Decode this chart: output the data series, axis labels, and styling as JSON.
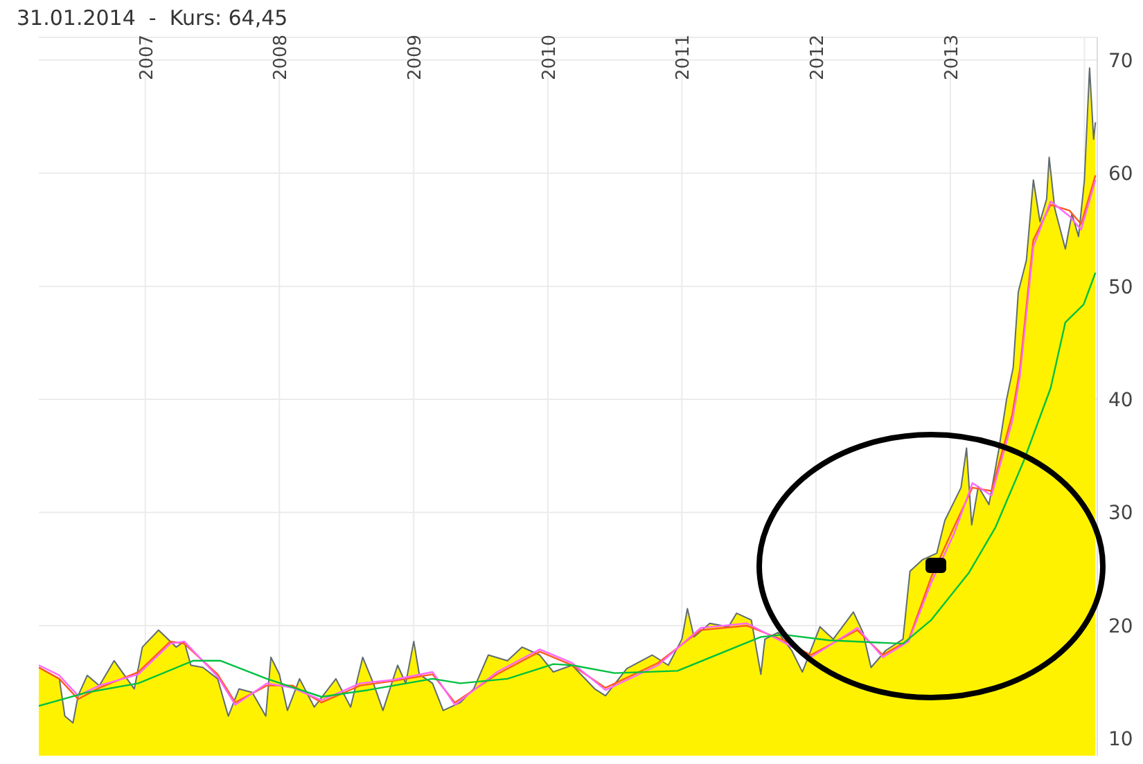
{
  "chart_data": {
    "type": "area",
    "title": "31.01.2014  -  Kurs: 64,45",
    "xlim": [
      "2006-03-17",
      "2014-02-05"
    ],
    "xticks": [
      {
        "value": "2007-01-01",
        "label": "2007"
      },
      {
        "value": "2008-01-01",
        "label": "2008"
      },
      {
        "value": "2009-01-01",
        "label": "2009"
      },
      {
        "value": "2010-01-01",
        "label": "2010"
      },
      {
        "value": "2011-01-01",
        "label": "2011"
      },
      {
        "value": "2012-01-01",
        "label": "2012"
      },
      {
        "value": "2013-01-01",
        "label": "2013"
      },
      {
        "value": "2014-01-01",
        "label": null
      }
    ],
    "ylim": [
      8.5,
      72
    ],
    "yticks": [
      10,
      20,
      30,
      40,
      50,
      60,
      70
    ],
    "grid": true,
    "series": [
      {
        "color": "#fff200",
        "x": [
          "2006-03-17",
          "2006-05-12",
          "2006-05-27",
          "2006-06-18",
          "2006-07-02",
          "2006-07-27",
          "2006-08-29",
          "2006-10-08",
          "2006-12-02",
          "2006-12-24",
          "2007-02-06",
          "2007-03-26",
          "2007-04-17",
          "2007-05-05",
          "2007-06-07",
          "2007-07-17",
          "2007-08-15",
          "2007-09-13",
          "2007-10-19",
          "2007-11-25",
          "2007-12-09",
          "2008-01-01",
          "2008-01-23",
          "2008-02-25",
          "2008-04-05",
          "2008-06-03",
          "2008-07-13",
          "2008-08-15",
          "2008-09-13",
          "2008-10-09",
          "2008-11-18",
          "2008-12-10",
          "2009-01-01",
          "2009-01-16",
          "2009-02-21",
          "2009-03-22",
          "2009-05-08",
          "2009-06-13",
          "2009-07-23",
          "2009-09-13",
          "2009-10-23",
          "2009-12-10",
          "2010-01-16",
          "2010-03-08",
          "2010-05-09",
          "2010-06-07",
          "2010-08-04",
          "2010-10-12",
          "2010-11-25",
          "2011-01-01",
          "2011-01-16",
          "2011-02-03",
          "2011-03-18",
          "2011-05-08",
          "2011-05-30",
          "2011-07-09",
          "2011-08-04",
          "2011-08-15",
          "2011-09-20",
          "2011-10-27",
          "2011-11-25",
          "2012-01-12",
          "2012-02-17",
          "2012-04-12",
          "2012-05-08",
          "2012-05-30",
          "2012-07-09",
          "2012-08-25",
          "2012-09-13",
          "2012-10-16",
          "2012-11-25",
          "2012-12-17",
          "2013-01-30",
          "2013-02-14",
          "2013-02-28",
          "2013-03-18",
          "2013-04-16",
          "2013-05-12",
          "2013-06-03",
          "2013-06-21",
          "2013-07-05",
          "2013-07-27",
          "2013-08-15",
          "2013-09-02",
          "2013-09-20",
          "2013-09-27",
          "2013-10-12",
          "2013-11-10",
          "2013-11-28",
          "2013-12-16",
          "2014-01-01",
          "2014-01-15",
          "2014-01-26",
          "2014-01-31"
        ],
        "values": [
          16.3,
          15.3,
          12.0,
          11.4,
          13.8,
          15.6,
          14.7,
          16.9,
          14.4,
          18.1,
          19.6,
          18.1,
          18.6,
          16.5,
          16.3,
          15.3,
          12.0,
          14.4,
          14.1,
          12.0,
          17.2,
          15.7,
          12.5,
          15.3,
          12.8,
          15.3,
          12.8,
          17.2,
          14.9,
          12.5,
          16.5,
          14.9,
          18.6,
          15.7,
          14.9,
          12.5,
          13.2,
          14.4,
          17.4,
          16.9,
          18.1,
          17.4,
          15.9,
          16.5,
          14.4,
          13.8,
          16.2,
          17.4,
          16.5,
          18.8,
          21.5,
          19.0,
          20.2,
          19.9,
          21.1,
          20.5,
          15.7,
          18.8,
          19.4,
          17.8,
          15.9,
          19.9,
          18.8,
          21.2,
          19.4,
          16.3,
          17.8,
          18.8,
          24.8,
          25.8,
          26.4,
          29.3,
          32.2,
          35.7,
          28.9,
          32.3,
          30.7,
          35.4,
          40.0,
          42.8,
          49.5,
          52.3,
          59.4,
          55.7,
          57.7,
          61.4,
          56.9,
          53.3,
          56.4,
          54.4,
          59.4,
          69.3,
          63.0,
          64.5
        ]
      },
      {
        "type": "line",
        "color": "#ff5a1f",
        "x": [
          "2006-03-17",
          "2006-05-12",
          "2006-07-02",
          "2006-08-29",
          "2006-12-13",
          "2007-03-10",
          "2007-04-17",
          "2007-07-17",
          "2007-09-03",
          "2007-11-28",
          "2008-02-06",
          "2008-04-25",
          "2008-08-08",
          "2008-11-05",
          "2009-02-21",
          "2009-04-23",
          "2009-08-16",
          "2009-12-10",
          "2010-03-08",
          "2010-06-07",
          "2010-10-28",
          "2011-02-21",
          "2011-06-27",
          "2011-10-06",
          "2011-12-18",
          "2012-04-23",
          "2012-07-01",
          "2012-09-09",
          "2012-11-10",
          "2013-01-12",
          "2013-03-02",
          "2013-04-23",
          "2013-06-18",
          "2013-07-09",
          "2013-08-15",
          "2013-10-01",
          "2013-11-21",
          "2013-12-23",
          "2014-01-31"
        ],
        "values": [
          16.3,
          15.3,
          13.5,
          14.5,
          15.9,
          18.6,
          18.4,
          15.7,
          13.2,
          14.7,
          14.7,
          13.2,
          14.7,
          15.1,
          15.7,
          13.2,
          15.7,
          17.7,
          16.5,
          14.5,
          16.7,
          19.6,
          20.0,
          18.7,
          17.4,
          19.6,
          17.4,
          18.7,
          24.3,
          28.8,
          32.2,
          31.9,
          38.6,
          42.6,
          54.1,
          57.2,
          56.7,
          55.5,
          59.8
        ]
      },
      {
        "type": "line",
        "color": "#ff66ff",
        "x": [
          "2006-03-17",
          "2006-05-12",
          "2006-07-02",
          "2006-08-29",
          "2006-12-13",
          "2007-03-10",
          "2007-04-17",
          "2007-07-17",
          "2007-09-03",
          "2007-11-28",
          "2008-02-06",
          "2008-04-25",
          "2008-08-08",
          "2008-11-05",
          "2009-02-21",
          "2009-04-23",
          "2009-08-16",
          "2009-12-10",
          "2010-03-08",
          "2010-06-07",
          "2010-10-28",
          "2011-02-21",
          "2011-06-27",
          "2011-10-06",
          "2011-12-18",
          "2012-04-23",
          "2012-07-01",
          "2012-09-09",
          "2012-11-10",
          "2013-01-12",
          "2013-03-02",
          "2013-04-23",
          "2013-06-18",
          "2013-07-09",
          "2013-08-15",
          "2013-10-01",
          "2013-11-21",
          "2013-12-23",
          "2014-01-31"
        ],
        "values": [
          16.5,
          15.6,
          13.8,
          14.7,
          15.7,
          18.4,
          18.6,
          15.5,
          13.0,
          14.9,
          14.5,
          13.4,
          14.9,
          15.2,
          15.9,
          13.0,
          15.9,
          17.9,
          16.7,
          14.3,
          16.5,
          19.8,
          20.2,
          18.5,
          17.2,
          19.8,
          17.2,
          18.6,
          23.8,
          28.2,
          32.6,
          31.5,
          38.0,
          42.0,
          53.5,
          57.5,
          56.2,
          55.0,
          59.4
        ]
      },
      {
        "type": "line",
        "color": "#00c040",
        "x": [
          "2006-03-17",
          "2006-07-27",
          "2006-12-13",
          "2007-05-12",
          "2007-07-24",
          "2007-11-28",
          "2008-04-25",
          "2008-08-29",
          "2009-02-21",
          "2009-05-08",
          "2009-09-13",
          "2010-01-16",
          "2010-03-08",
          "2010-07-02",
          "2010-12-20",
          "2011-08-04",
          "2011-10-06",
          "2012-02-06",
          "2012-08-25",
          "2012-11-10",
          "2013-02-21",
          "2013-05-04",
          "2013-07-19",
          "2013-10-01",
          "2013-11-10",
          "2013-12-30",
          "2014-01-31"
        ],
        "values": [
          12.9,
          14.1,
          14.9,
          16.9,
          16.9,
          15.3,
          13.7,
          14.3,
          15.3,
          14.9,
          15.3,
          16.6,
          16.5,
          15.8,
          16.0,
          19.0,
          19.2,
          18.7,
          18.4,
          20.5,
          24.7,
          28.7,
          34.5,
          41.0,
          46.8,
          48.4,
          51.2
        ]
      }
    ]
  }
}
